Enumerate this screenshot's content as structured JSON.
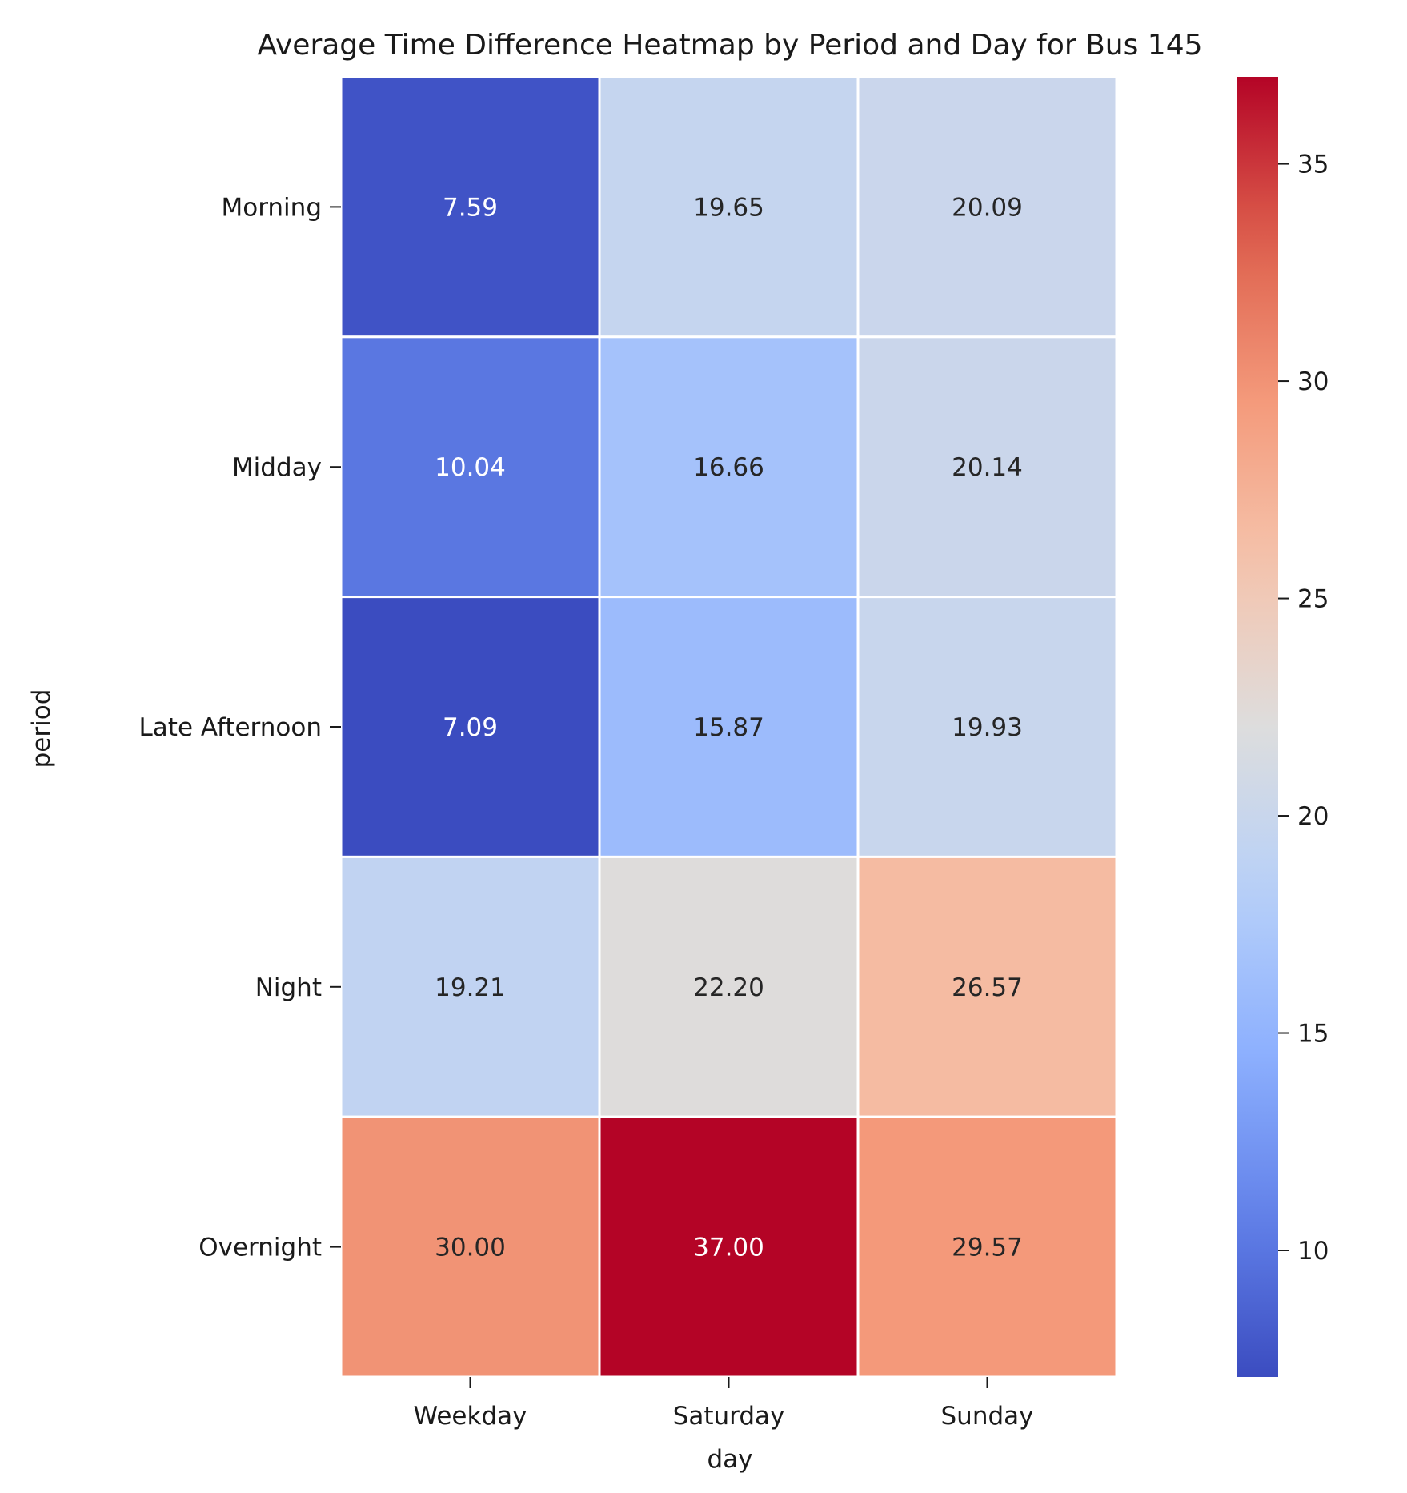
{
  "chart_data": {
    "type": "heatmap",
    "title": "Average Time Difference Heatmap by Period and Day for Bus 145",
    "xlabel": "day",
    "ylabel": "period",
    "x_categories": [
      "Weekday",
      "Saturday",
      "Sunday"
    ],
    "y_categories": [
      "Morning",
      "Midday",
      "Late Afternoon",
      "Night",
      "Overnight"
    ],
    "values": [
      [
        7.59,
        19.65,
        20.09
      ],
      [
        10.04,
        16.66,
        20.14
      ],
      [
        7.09,
        15.87,
        19.93
      ],
      [
        19.21,
        22.2,
        26.57
      ],
      [
        30.0,
        37.0,
        29.57
      ]
    ],
    "value_labels": [
      [
        "7.59",
        "19.65",
        "20.09"
      ],
      [
        "10.04",
        "16.66",
        "20.14"
      ],
      [
        "7.09",
        "15.87",
        "19.93"
      ],
      [
        "19.21",
        "22.20",
        "26.57"
      ],
      [
        "30.00",
        "37.00",
        "29.57"
      ]
    ],
    "colormap": "coolwarm",
    "colorbar": {
      "vmin": 7.09,
      "vmax": 37.0,
      "ticks": [
        10,
        15,
        20,
        25,
        30,
        35
      ],
      "tick_labels": [
        "10",
        "15",
        "20",
        "25",
        "30",
        "35"
      ]
    },
    "grid": false,
    "legend": "colorbar right"
  }
}
